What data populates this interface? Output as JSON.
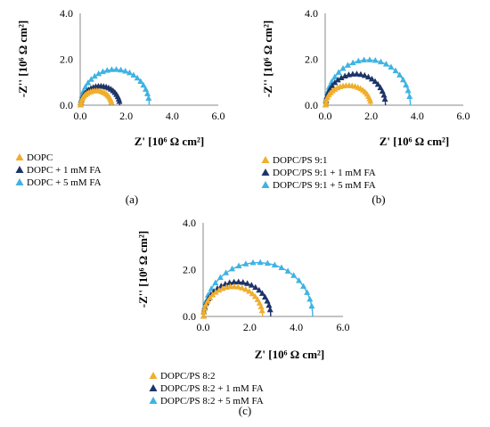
{
  "colors": {
    "gold": "#f0ae2c",
    "navy": "#1d3468",
    "cyan": "#3fb3e3"
  },
  "chart_data": [
    {
      "type": "scatter",
      "panel_label": "(a)",
      "xlabel": "Z' [10⁶ Ω cm²]",
      "ylabel": "-Z'' [10⁶ Ω cm²]",
      "xlim": [
        0,
        6
      ],
      "ylim": [
        0,
        4
      ],
      "xticks": [
        "0.0",
        "2.0",
        "4.0",
        "6.0"
      ],
      "yticks": [
        "0.0",
        "2.0",
        "4.0"
      ],
      "legend_position": "bottom-left",
      "series": [
        {
          "name": "DOPC",
          "color": "gold",
          "x_min": 0.02,
          "x_max": 1.37,
          "y_peak": 0.62,
          "fit": true
        },
        {
          "name": "DOPC + 1 mM FA",
          "color": "navy",
          "x_min": 0.02,
          "x_max": 1.72,
          "y_peak": 0.82,
          "fit": true
        },
        {
          "name": "DOPC + 5 mM FA",
          "color": "cyan",
          "x_min": 0.02,
          "x_max": 3.0,
          "y_peak": 1.55,
          "fit": true
        }
      ]
    },
    {
      "type": "scatter",
      "panel_label": "(b)",
      "xlabel": "Z' [10⁶ Ω cm²]",
      "ylabel": "-Z'' [10⁶ Ω cm²]",
      "xlim": [
        0,
        6
      ],
      "ylim": [
        0,
        4
      ],
      "xticks": [
        "0.0",
        "2.0",
        "4.0",
        "6.0"
      ],
      "yticks": [
        "0.0",
        "2.0",
        "4.0"
      ],
      "legend_position": "bottom-left",
      "series": [
        {
          "name": "DOPC/PS 9:1",
          "color": "gold",
          "x_min": 0.02,
          "x_max": 1.98,
          "y_peak": 0.85,
          "fit": true
        },
        {
          "name": "DOPC/PS 9:1 + 1 mM FA",
          "color": "navy",
          "x_min": 0.02,
          "x_max": 2.62,
          "y_peak": 1.35,
          "fit": true
        },
        {
          "name": "DOPC/PS 9:1 + 5 mM FA",
          "color": "cyan",
          "x_min": 0.02,
          "x_max": 3.7,
          "y_peak": 1.97,
          "fit": true
        }
      ]
    },
    {
      "type": "scatter",
      "panel_label": "(c)",
      "xlabel": "Z' [10⁶ Ω cm²]",
      "ylabel": "-Z'' [10⁶ Ω cm²]",
      "xlim": [
        0,
        6
      ],
      "ylim": [
        0,
        4
      ],
      "xticks": [
        "0.0",
        "2.0",
        "4.0",
        "6.0"
      ],
      "yticks": [
        "0.0",
        "2.0",
        "4.0"
      ],
      "legend_position": "bottom-left",
      "series": [
        {
          "name": "DOPC/PS 8:2",
          "color": "gold",
          "x_min": 0.02,
          "x_max": 2.55,
          "y_peak": 1.27,
          "fit": true
        },
        {
          "name": "DOPC/PS 8:2 + 1 mM FA",
          "color": "navy",
          "x_min": 0.02,
          "x_max": 2.9,
          "y_peak": 1.47,
          "fit": true
        },
        {
          "name": "DOPC/PS 8:2 + 5 mM FA",
          "color": "cyan",
          "x_min": 0.02,
          "x_max": 4.7,
          "y_peak": 2.3,
          "fit": true
        }
      ]
    }
  ]
}
